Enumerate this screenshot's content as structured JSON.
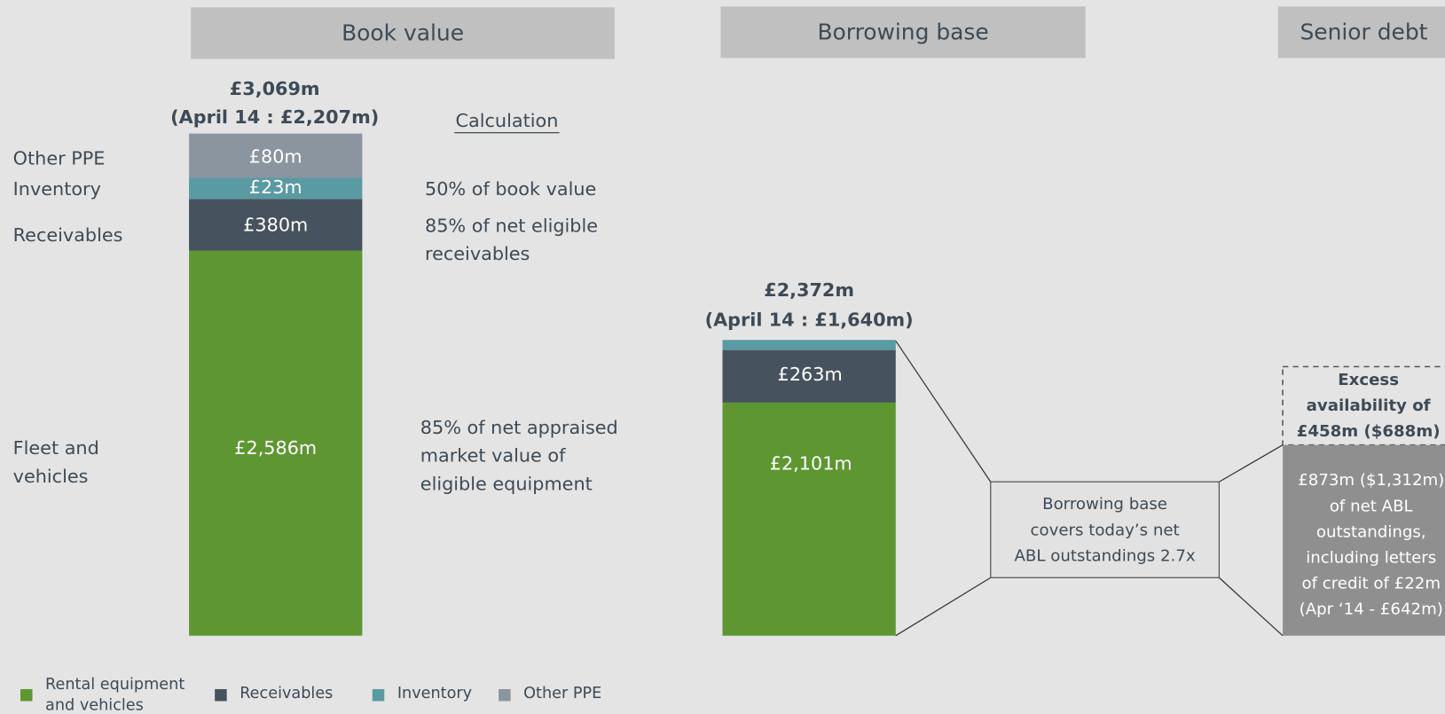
{
  "book_value": {
    "header": "Book value",
    "total": "£3,069m",
    "comparison": "(April 14 : £2,207m)",
    "calculation_heading": "Calculation",
    "rows": [
      {
        "name": [
          "Other PPE"
        ],
        "value": "£80m"
      },
      {
        "name": [
          "Inventory"
        ],
        "value": "£23m",
        "calculation": [
          "50% of book value"
        ]
      },
      {
        "name": [
          "Receivables"
        ],
        "value": "£380m",
        "calculation": [
          "85% of net eligible",
          "receivables"
        ]
      },
      {
        "name": [
          "Fleet and",
          "vehicles"
        ],
        "value": "£2,586m",
        "calculation": [
          "85% of net appraised",
          "market value of",
          "eligible equipment"
        ]
      }
    ]
  },
  "borrowing_base": {
    "header": "Borrowing base",
    "total": "£2,372m",
    "comparison": "(April 14 : £1,640m)",
    "receivables": "£263m",
    "fleet": "£2,101m",
    "coverage_note": [
      "Borrowing base",
      "covers today’s net",
      "ABL outstandings 2.7x"
    ]
  },
  "senior_debt": {
    "header": "Senior debt",
    "excess": [
      "Excess",
      "availability of",
      "£458m ($688m)"
    ],
    "outstanding": [
      "£873m ($1,312m)",
      "of net ABL",
      "outstandings,",
      "including letters",
      "of credit of £22m",
      "(Apr ‘14 - £642m)"
    ]
  },
  "legend": [
    {
      "label": [
        "Rental equipment",
        "and vehicles"
      ],
      "color": "#5e9732"
    },
    {
      "label": [
        "Receivables"
      ],
      "color": "#46535e"
    },
    {
      "label": [
        "Inventory"
      ],
      "color": "#5a9aa3"
    },
    {
      "label": [
        "Other PPE"
      ],
      "color": "#8a959f"
    }
  ]
}
